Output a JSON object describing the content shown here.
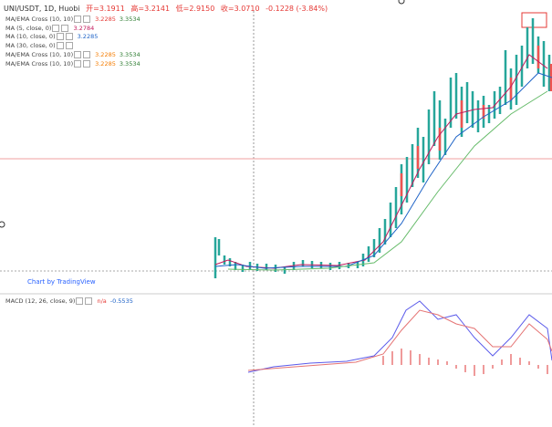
{
  "header": {
    "symbol": "UNI/USDT, 1D, Huobi",
    "open": "开=3.1911",
    "high": "高=3.2141",
    "low": "低=2.9150",
    "close": "收=3.0710",
    "change": "-0.1228 (-3.84%)"
  },
  "legend": [
    {
      "name": "MA/EMA Cross (10, 10)",
      "values": [
        {
          "text": "3.2285",
          "color": "#e53935"
        },
        {
          "text": "3.3534",
          "color": "#2e7d32"
        }
      ]
    },
    {
      "name": "MA (5, close, 0)",
      "values": [
        {
          "text": "3.2784",
          "color": "#c2185b"
        }
      ]
    },
    {
      "name": "MA (10, close, 0)",
      "values": [
        {
          "text": "3.2285",
          "color": "#1e63c7"
        }
      ]
    },
    {
      "name": "MA (30, close, 0)",
      "values": []
    },
    {
      "name": "MA/EMA Cross (10, 10)",
      "values": [
        {
          "text": "3.2285",
          "color": "#f57c00"
        },
        {
          "text": "3.3534",
          "color": "#2e7d32"
        }
      ]
    },
    {
      "name": "MA/EMA Cross (10, 10)",
      "values": [
        {
          "text": "3.2285",
          "color": "#f57c00"
        },
        {
          "text": "3.3534",
          "color": "#2e7d32"
        }
      ]
    }
  ],
  "watermark": "Chart by TradingView",
  "macd": {
    "name": "MACD (12, 26, close, 9)",
    "values": [
      {
        "text": "n/a",
        "color": "#e53935"
      },
      {
        "text": "-0.5535",
        "color": "#1e63c7"
      }
    ]
  }
}
